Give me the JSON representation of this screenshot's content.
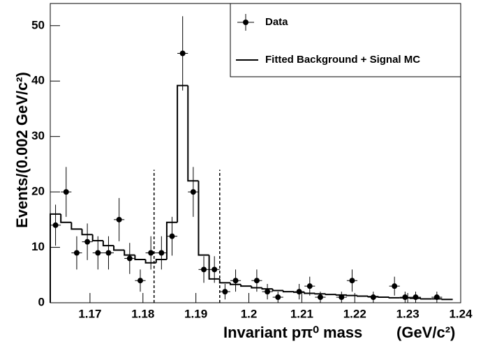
{
  "chart_data": {
    "type": "histogram",
    "xlabel": "Invariant pπ⁰ mass",
    "xunit": "(GeV/c²)",
    "ylabel": "Events/(0.002 GeV/c²)",
    "bins": [
      1.1625,
      1.1645,
      1.1665,
      1.1685,
      1.1705,
      1.1725,
      1.1745,
      1.1765,
      1.1785,
      1.1805,
      1.1825,
      1.1845,
      1.1865,
      1.1885,
      1.1905,
      1.1925,
      1.1945,
      1.1965,
      1.1985,
      1.2005,
      1.2025,
      1.2045,
      1.2065,
      1.2085,
      1.2105,
      1.2125,
      1.2145,
      1.2165,
      1.2185,
      1.2205,
      1.2225,
      1.2245,
      1.2265,
      1.2285,
      1.2305,
      1.2325,
      1.2345,
      1.2365,
      1.2385
    ],
    "series": [
      {
        "name": "Data",
        "color": "#000000",
        "values": [
          14,
          20,
          9,
          11,
          9,
          9,
          15,
          8,
          4,
          9,
          9,
          12,
          45,
          20,
          6,
          6,
          2,
          4,
          null,
          4,
          2,
          1,
          null,
          2,
          3,
          1,
          null,
          1,
          4,
          null,
          1,
          null,
          3,
          1,
          1,
          null,
          1,
          null
        ],
        "errors": [
          3.7,
          4.5,
          3,
          3.3,
          3,
          3,
          3.9,
          2.8,
          2,
          3,
          3,
          3.5,
          6.7,
          4.5,
          2.4,
          2.4,
          1.4,
          2,
          null,
          2,
          1.4,
          1,
          null,
          1.4,
          1.7,
          1,
          null,
          1,
          2,
          null,
          1,
          null,
          1.7,
          1,
          1,
          null,
          1,
          null
        ]
      },
      {
        "name": "Fitted Background + Signal MC",
        "color": "#000000",
        "values": [
          16,
          14.5,
          13.3,
          12.3,
          11.2,
          10.3,
          9.5,
          8.6,
          7.8,
          7.2,
          7.8,
          14.5,
          39.2,
          22,
          8.6,
          4.3,
          3.6,
          3.3,
          3.0,
          2.7,
          2.5,
          2.2,
          2.0,
          1.9,
          1.7,
          1.6,
          1.5,
          1.4,
          1.3,
          1.2,
          1.1,
          1.0,
          0.9,
          0.9,
          0.8,
          0.7,
          0.7,
          0.6
        ]
      }
    ],
    "cut_lines": [
      1.1821,
      1.1945
    ],
    "cut_line_top": 24,
    "xlim": [
      1.1625,
      1.24
    ],
    "xticks": [
      1.17,
      1.18,
      1.19,
      1.2,
      1.21,
      1.22,
      1.23,
      1.24
    ],
    "ylim": [
      0,
      54
    ],
    "yticks": [
      0,
      10,
      20,
      30,
      40,
      50
    ]
  }
}
